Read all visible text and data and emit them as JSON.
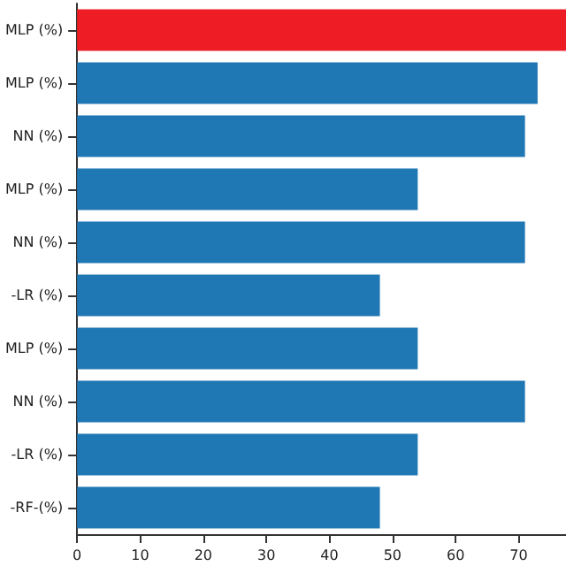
{
  "chart_data": {
    "type": "bar",
    "orientation": "horizontal",
    "categories": [
      "MLP (%)",
      "MLP (%)",
      "NN (%)",
      "MLP (%)",
      "NN (%)",
      "-LR (%)",
      "MLP (%)",
      "NN (%)",
      "-LR (%)",
      "-RF-(%)"
    ],
    "values": [
      77.5,
      73,
      71,
      54,
      71,
      48,
      54,
      71,
      54,
      48
    ],
    "colors": [
      "#ee1c25",
      "#1f77b4",
      "#1f77b4",
      "#1f77b4",
      "#1f77b4",
      "#1f77b4",
      "#1f77b4",
      "#1f77b4",
      "#1f77b4",
      "#1f77b4"
    ],
    "xlim": [
      0,
      77.5
    ],
    "xticks": [
      0,
      10,
      20,
      30,
      40,
      50,
      60,
      70
    ]
  }
}
